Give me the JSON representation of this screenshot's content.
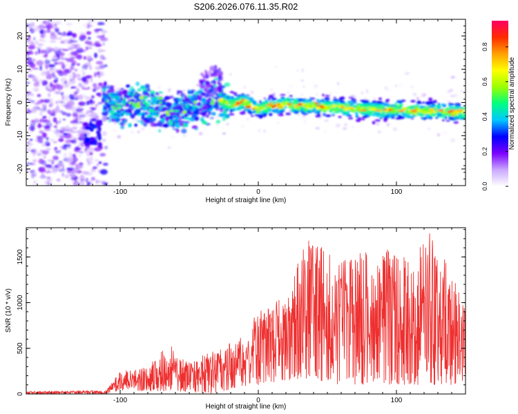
{
  "title": "S206.2026.076.11.35.R02",
  "chart_data": [
    {
      "type": "heatmap",
      "title": "S206.2026.076.11.35.R02",
      "xlabel": "Height of straight line (km)",
      "ylabel": "Frequency (Hz)",
      "xlim": [
        -168,
        150
      ],
      "ylim": [
        -25,
        25
      ],
      "x_ticks": [
        -100,
        0,
        100
      ],
      "y_ticks": [
        -20,
        -10,
        0,
        10,
        20
      ],
      "colorbar": {
        "label": "Normalized spectral amplitude",
        "range": [
          0,
          0.95
        ],
        "ticks": [
          "0.0",
          "0.2",
          "0.4",
          "0.6",
          "0.8"
        ],
        "tick_values": [
          0,
          0.2,
          0.4,
          0.6,
          0.8
        ],
        "colors": [
          "#ffffff",
          "#c9a8ff",
          "#7a00ff",
          "#0000ff",
          "#00c8ff",
          "#00ff80",
          "#9cff00",
          "#ffff00",
          "#ffa000",
          "#ff2a00",
          "#ff0064"
        ]
      },
      "ridge": [
        {
          "x": -112,
          "f": 1.0
        },
        {
          "x": -100,
          "f": -1.5
        },
        {
          "x": -90,
          "f": 0.0
        },
        {
          "x": -80,
          "f": -1.0
        },
        {
          "x": -70,
          "f": -2.0
        },
        {
          "x": -60,
          "f": -3.0
        },
        {
          "x": -50,
          "f": -1.5
        },
        {
          "x": -40,
          "f": -0.5
        },
        {
          "x": -30,
          "f": 1.0
        },
        {
          "x": -20,
          "f": -0.5
        },
        {
          "x": -10,
          "f": 0.0
        },
        {
          "x": 0,
          "f": -2.0
        },
        {
          "x": 10,
          "f": -1.0
        },
        {
          "x": 20,
          "f": -0.5
        },
        {
          "x": 30,
          "f": -1.0
        },
        {
          "x": 40,
          "f": -1.0
        },
        {
          "x": 50,
          "f": -1.5
        },
        {
          "x": 60,
          "f": -1.5
        },
        {
          "x": 70,
          "f": -2.0
        },
        {
          "x": 80,
          "f": -2.0
        },
        {
          "x": 90,
          "f": -2.5
        },
        {
          "x": 100,
          "f": -2.0
        },
        {
          "x": 110,
          "f": -2.5
        },
        {
          "x": 120,
          "f": -2.5
        },
        {
          "x": 130,
          "f": -2.5
        },
        {
          "x": 140,
          "f": -3.0
        },
        {
          "x": 150,
          "f": -3.0
        }
      ]
    },
    {
      "type": "line",
      "xlabel": "Height of straight line (km)",
      "ylabel": "SNR (10 * v/v)",
      "xlim": [
        -168,
        150
      ],
      "ylim": [
        0,
        1820
      ],
      "x_ticks": [
        -100,
        0,
        100
      ],
      "y_ticks": [
        0,
        500,
        1000,
        1500
      ],
      "line_color": "#ee3030",
      "envelope": [
        {
          "x": -168,
          "lo": 0,
          "hi": 30
        },
        {
          "x": -110,
          "lo": 0,
          "hi": 40
        },
        {
          "x": -100,
          "lo": 40,
          "hi": 250
        },
        {
          "x": -80,
          "lo": 30,
          "hi": 300
        },
        {
          "x": -65,
          "lo": 30,
          "hi": 550
        },
        {
          "x": -50,
          "lo": 20,
          "hi": 350
        },
        {
          "x": -30,
          "lo": 0,
          "hi": 500
        },
        {
          "x": -15,
          "lo": 80,
          "hi": 600
        },
        {
          "x": 0,
          "lo": 100,
          "hi": 900
        },
        {
          "x": 20,
          "lo": 150,
          "hi": 1100
        },
        {
          "x": 35,
          "lo": 150,
          "hi": 1700
        },
        {
          "x": 60,
          "lo": 100,
          "hi": 1500
        },
        {
          "x": 90,
          "lo": 100,
          "hi": 1600
        },
        {
          "x": 110,
          "lo": 100,
          "hi": 1500
        },
        {
          "x": 125,
          "lo": 100,
          "hi": 1800
        },
        {
          "x": 140,
          "lo": 100,
          "hi": 1300
        },
        {
          "x": 150,
          "lo": 150,
          "hi": 1000
        }
      ]
    }
  ]
}
